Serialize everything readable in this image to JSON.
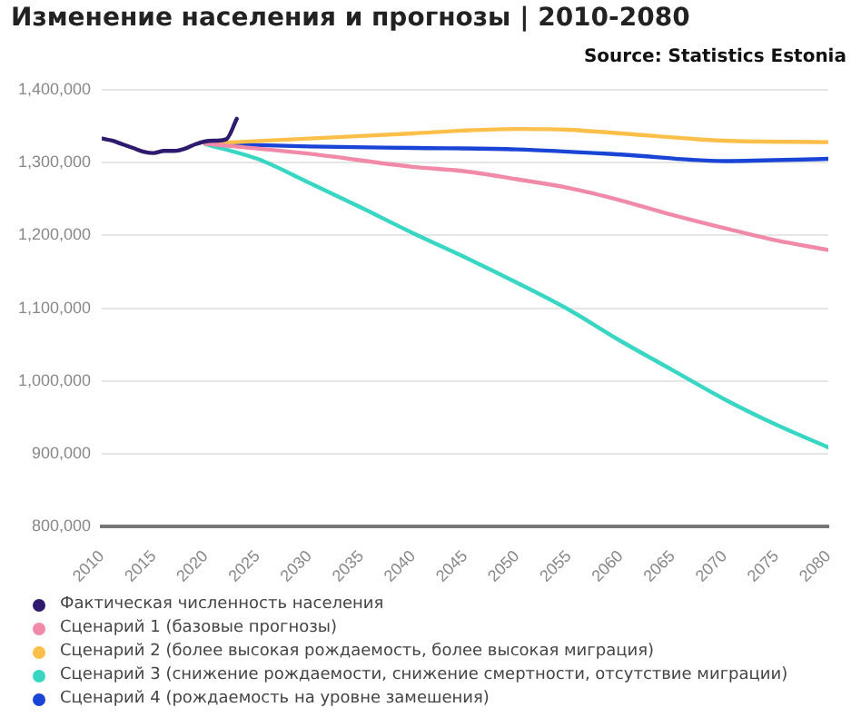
{
  "chart_data": {
    "type": "line",
    "title": "Изменение населения и прогнозы | 2010-2080",
    "annotations": [
      "Source: Statistics Estonia"
    ],
    "series": [
      {
        "name": "Фактическая численность населения",
        "color": "#2e1a6e",
        "x": [
          2010,
          2011,
          2012,
          2013,
          2014,
          2015,
          2016,
          2017,
          2018,
          2019,
          2020,
          2021,
          2022,
          2023
        ],
        "values": [
          1333000,
          1330000,
          1325000,
          1320000,
          1315000,
          1313000,
          1316000,
          1316000,
          1319000,
          1325000,
          1329000,
          1330000,
          1332000,
          1360000
        ]
      },
      {
        "name": "Сценарий 1 (базовые прогнозы)",
        "color": "#f08aa8",
        "x": [
          2020,
          2030,
          2040,
          2045,
          2050,
          2055,
          2060,
          2065,
          2070,
          2075,
          2080
        ],
        "values": [
          1326000,
          1312000,
          1294000,
          1288000,
          1277000,
          1265000,
          1248000,
          1228000,
          1210000,
          1193000,
          1180000
        ]
      },
      {
        "name": "Сценарий 2 (более высокая рождаемость, более высокая миграция)",
        "color": "#fbbf4a",
        "x": [
          2020,
          2030,
          2040,
          2045,
          2050,
          2055,
          2060,
          2070,
          2080
        ],
        "values": [
          1326000,
          1333000,
          1340000,
          1344000,
          1346000,
          1345000,
          1340000,
          1330000,
          1328000
        ]
      },
      {
        "name": "Сценарий 3 (снижение рождаемости, снижение смертности, отсутствие миграции)",
        "color": "#3ad6c4",
        "x": [
          2020,
          2025,
          2030,
          2035,
          2040,
          2045,
          2050,
          2055,
          2060,
          2065,
          2070,
          2075,
          2080
        ],
        "values": [
          1325000,
          1305000,
          1272000,
          1238000,
          1203000,
          1170000,
          1135000,
          1098000,
          1055000,
          1015000,
          975000,
          940000,
          909000
        ]
      },
      {
        "name": "Сценарий 4 (рождаемость на уровне замешения)",
        "color": "#1a44d6",
        "x": [
          2020,
          2030,
          2040,
          2050,
          2060,
          2070,
          2080
        ],
        "values": [
          1326000,
          1322000,
          1320000,
          1318000,
          1311000,
          1302000,
          1305000
        ]
      }
    ],
    "xlim": [
      2010,
      2080
    ],
    "xticks": [
      2010,
      2015,
      2020,
      2025,
      2030,
      2035,
      2040,
      2045,
      2050,
      2055,
      2060,
      2065,
      2070,
      2075,
      2080
    ],
    "ylim": [
      800000,
      1400000
    ],
    "yticks": [
      {
        "value": 800000,
        "label": "800,000"
      },
      {
        "value": 900000,
        "label": "900,000"
      },
      {
        "value": 1000000,
        "label": "1,000,000"
      },
      {
        "value": 1100000,
        "label": "1,100,000"
      },
      {
        "value": 1200000,
        "label": "1,200,000"
      },
      {
        "value": 1300000,
        "label": "1,300,000"
      },
      {
        "value": 1400000,
        "label": "1,400,000"
      }
    ],
    "grid": "y",
    "legend": "bottom",
    "marker": "none",
    "line_style": "solid"
  }
}
